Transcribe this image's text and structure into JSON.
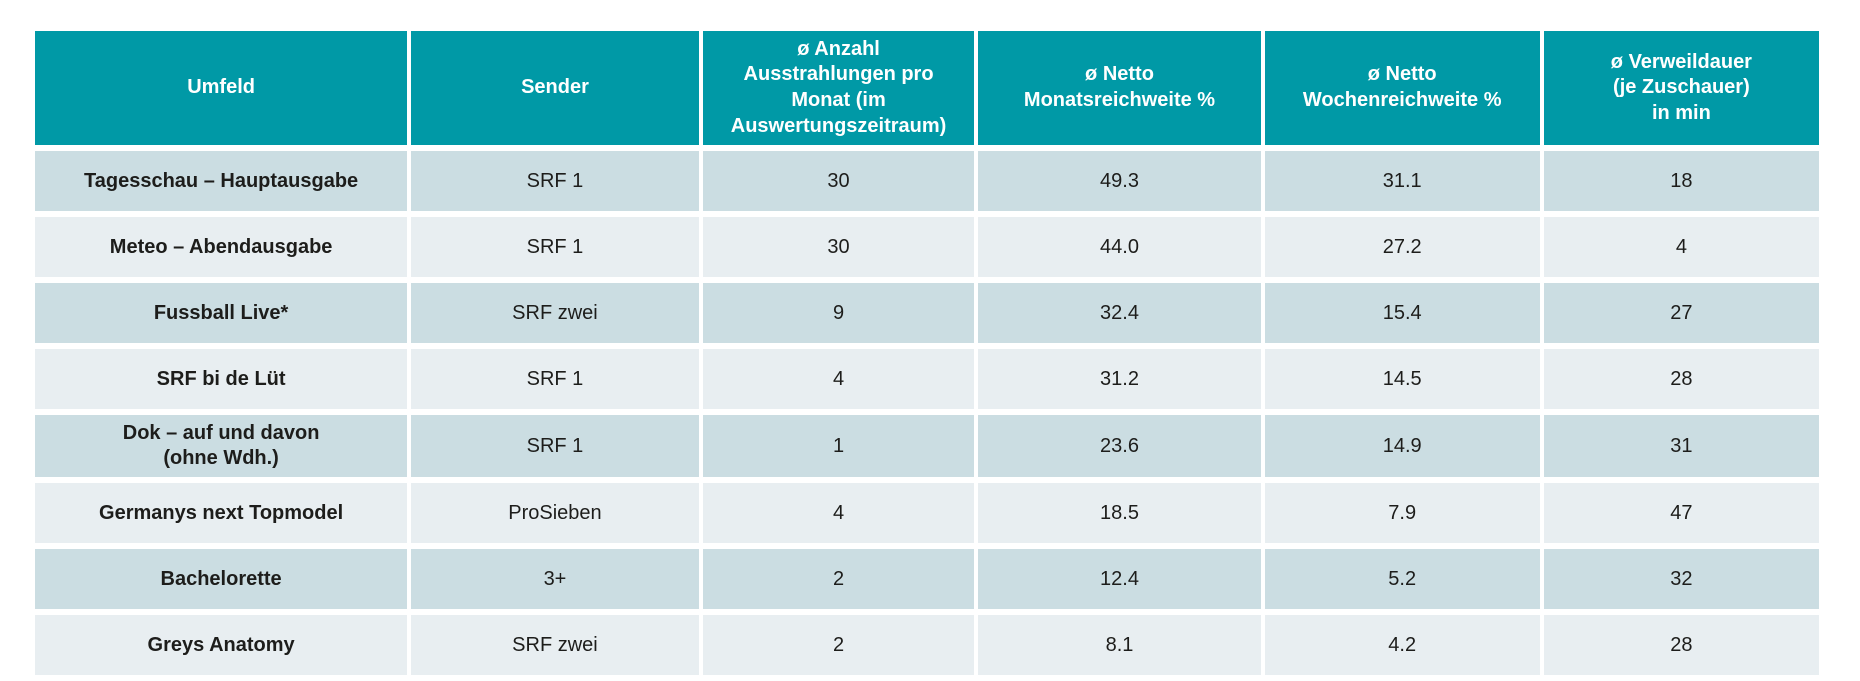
{
  "colors": {
    "header_bg": "#0099A6",
    "header_text": "#FFFFFF",
    "row_odd_bg": "#CBDDE2",
    "row_even_bg": "#E8EEF1",
    "body_text": "#1D1D1B"
  },
  "table": {
    "columns": [
      {
        "label": "Umfeld"
      },
      {
        "label": "Sender"
      },
      {
        "label": "ø Anzahl\nAusstrahlungen pro\nMonat (im\nAuswertungszeitraum)"
      },
      {
        "label": "ø Netto\nMonatsreichweite %"
      },
      {
        "label": "ø Netto\nWochenreichweite %"
      },
      {
        "label": "ø Verweildauer\n(je Zuschauer)\nin min"
      }
    ],
    "rows": [
      {
        "umfeld": "Tagesschau – Hauptausgabe",
        "sender": "SRF 1",
        "ausstrahlungen": "30",
        "monatsreichweite": "49.3",
        "wochenreichweite": "31.1",
        "verweildauer": "18"
      },
      {
        "umfeld": "Meteo – Abendausgabe",
        "sender": "SRF 1",
        "ausstrahlungen": "30",
        "monatsreichweite": "44.0",
        "wochenreichweite": "27.2",
        "verweildauer": "4"
      },
      {
        "umfeld": "Fussball Live*",
        "sender": "SRF zwei",
        "ausstrahlungen": "9",
        "monatsreichweite": "32.4",
        "wochenreichweite": "15.4",
        "verweildauer": "27"
      },
      {
        "umfeld": "SRF bi de Lüt",
        "sender": "SRF 1",
        "ausstrahlungen": "4",
        "monatsreichweite": "31.2",
        "wochenreichweite": "14.5",
        "verweildauer": "28"
      },
      {
        "umfeld": "Dok – auf und davon\n(ohne Wdh.)",
        "sender": "SRF 1",
        "ausstrahlungen": "1",
        "monatsreichweite": "23.6",
        "wochenreichweite": "14.9",
        "verweildauer": "31"
      },
      {
        "umfeld": "Germanys next Topmodel",
        "sender": "ProSieben",
        "ausstrahlungen": "4",
        "monatsreichweite": "18.5",
        "wochenreichweite": "7.9",
        "verweildauer": "47"
      },
      {
        "umfeld": "Bachelorette",
        "sender": "3+",
        "ausstrahlungen": "2",
        "monatsreichweite": "12.4",
        "wochenreichweite": "5.2",
        "verweildauer": "32"
      },
      {
        "umfeld": "Greys Anatomy",
        "sender": "SRF zwei",
        "ausstrahlungen": "2",
        "monatsreichweite": "8.1",
        "wochenreichweite": "4.2",
        "verweildauer": "28"
      }
    ]
  },
  "chart_data": {
    "type": "table",
    "title": "",
    "columns": [
      "Umfeld",
      "Sender",
      "ø Anzahl Ausstrahlungen pro Monat (im Auswertungszeitraum)",
      "ø Netto Monatsreichweite %",
      "ø Netto Wochenreichweite %",
      "ø Verweildauer (je Zuschauer) in min"
    ],
    "rows": [
      [
        "Tagesschau – Hauptausgabe",
        "SRF 1",
        30,
        49.3,
        31.1,
        18
      ],
      [
        "Meteo – Abendausgabe",
        "SRF 1",
        30,
        44.0,
        27.2,
        4
      ],
      [
        "Fussball Live*",
        "SRF zwei",
        9,
        32.4,
        15.4,
        27
      ],
      [
        "SRF bi de Lüt",
        "SRF 1",
        4,
        31.2,
        14.5,
        28
      ],
      [
        "Dok – auf und davon (ohne Wdh.)",
        "SRF 1",
        1,
        23.6,
        14.9,
        31
      ],
      [
        "Germanys next Topmodel",
        "ProSieben",
        4,
        18.5,
        7.9,
        47
      ],
      [
        "Bachelorette",
        "3+",
        2,
        12.4,
        5.2,
        32
      ],
      [
        "Greys Anatomy",
        "SRF zwei",
        2,
        8.1,
        4.2,
        28
      ]
    ]
  }
}
